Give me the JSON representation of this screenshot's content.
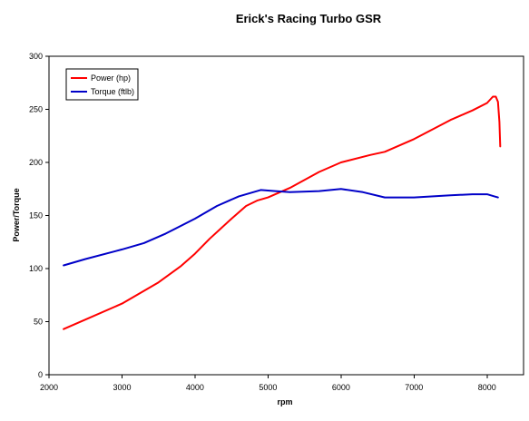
{
  "chart_data": {
    "type": "line",
    "title": "Erick's Racing Turbo GSR",
    "xlabel": "rpm",
    "ylabel": "Power/Torque",
    "xlim": [
      2000,
      8500
    ],
    "ylim": [
      0,
      300
    ],
    "xticks": [
      2000,
      3000,
      4000,
      5000,
      6000,
      7000,
      8000
    ],
    "yticks": [
      0,
      50,
      100,
      150,
      200,
      250,
      300
    ],
    "grid": true,
    "legend_position": "top-left",
    "series": [
      {
        "name": "Power (hp)",
        "color": "#ff0000",
        "x": [
          2200,
          2500,
          3000,
          3500,
          3800,
          4000,
          4200,
          4500,
          4700,
          4850,
          5000,
          5300,
          5700,
          6000,
          6400,
          6600,
          7000,
          7500,
          7800,
          8000,
          8080,
          8120,
          8150,
          8170,
          8180
        ],
        "y": [
          43,
          52,
          67,
          87,
          102,
          114,
          128,
          147,
          159,
          164,
          167,
          176,
          191,
          200,
          207,
          210,
          222,
          240,
          249,
          256,
          262,
          262,
          257,
          238,
          215
        ]
      },
      {
        "name": "Torque (ftlb)",
        "color": "#0000c8",
        "x": [
          2200,
          2500,
          3000,
          3300,
          3600,
          4000,
          4300,
          4600,
          4900,
          5100,
          5300,
          5700,
          6000,
          6300,
          6600,
          7000,
          7500,
          7800,
          8000,
          8100,
          8150
        ],
        "y": [
          103,
          109,
          118,
          124,
          133,
          147,
          159,
          168,
          174,
          173,
          172,
          173,
          175,
          172,
          167,
          167,
          169,
          170,
          170,
          168,
          167
        ]
      }
    ]
  }
}
